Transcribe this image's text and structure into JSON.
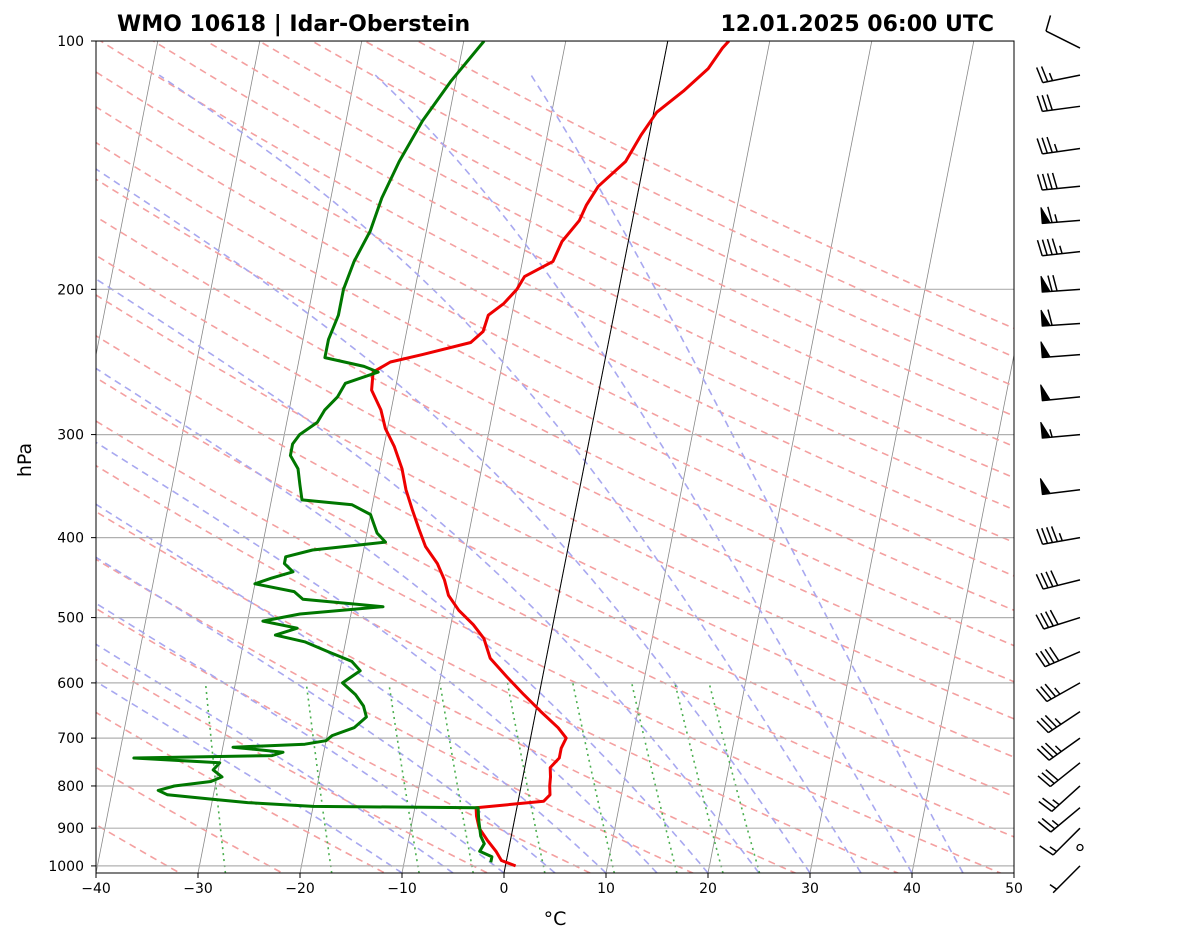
{
  "header": {
    "station": "WMO 10618 | Idar-Oberstein",
    "datetime": "12.01.2025 06:00 UTC"
  },
  "chart_data": {
    "type": "line",
    "diagram": "skew-t log-p",
    "xlabel": "°C",
    "ylabel": "hPa",
    "xlim": [
      -40,
      50
    ],
    "ylim": [
      1020,
      100
    ],
    "y_scale": "log",
    "grid": true,
    "x_ticks": [
      -40,
      -30,
      -20,
      -10,
      0,
      10,
      20,
      30,
      40,
      50
    ],
    "x_tick_labels": [
      "−40",
      "−30",
      "−20",
      "−10",
      "0",
      "10",
      "20",
      "30",
      "40",
      "50"
    ],
    "y_ticks": [
      100,
      200,
      300,
      400,
      500,
      600,
      700,
      800,
      900,
      1000
    ],
    "y_tick_labels": [
      "100",
      "200",
      "300",
      "400",
      "500",
      "600",
      "700",
      "800",
      "900",
      "1000"
    ],
    "colors": {
      "temperature": "#ee0000",
      "dewpoint": "#007700",
      "dry_adiabat": "#f4a0a0",
      "moist_adiabat": "#a8a8f0",
      "mixing_ratio": "#4caf50",
      "isotherm": "#888888",
      "reference": "#000000"
    },
    "series": [
      {
        "id": "temperature",
        "points": [
          [
            1000,
            1.0
          ],
          [
            985,
            -0.5
          ],
          [
            960,
            -1.2
          ],
          [
            930,
            -2.3
          ],
          [
            900,
            -3.3
          ],
          [
            870,
            -3.8
          ],
          [
            850,
            -4.0
          ],
          [
            835,
            2.5
          ],
          [
            820,
            3.0
          ],
          [
            800,
            2.8
          ],
          [
            780,
            2.7
          ],
          [
            760,
            2.5
          ],
          [
            740,
            3.2
          ],
          [
            720,
            3.2
          ],
          [
            700,
            3.5
          ],
          [
            680,
            2.5
          ],
          [
            650,
            0.5
          ],
          [
            620,
            -1.5
          ],
          [
            590,
            -3.5
          ],
          [
            560,
            -5.5
          ],
          [
            530,
            -6.5
          ],
          [
            510,
            -7.8
          ],
          [
            490,
            -9.5
          ],
          [
            470,
            -10.8
          ],
          [
            450,
            -11.5
          ],
          [
            430,
            -12.5
          ],
          [
            410,
            -14.0
          ],
          [
            390,
            -15.0
          ],
          [
            370,
            -16.0
          ],
          [
            350,
            -17.0
          ],
          [
            330,
            -17.8
          ],
          [
            310,
            -19.0
          ],
          [
            295,
            -20.2
          ],
          [
            280,
            -21.0
          ],
          [
            265,
            -22.3
          ],
          [
            252,
            -22.5
          ],
          [
            245,
            -21.0
          ],
          [
            240,
            -18.0
          ],
          [
            232,
            -13.5
          ],
          [
            225,
            -12.5
          ],
          [
            215,
            -12.3
          ],
          [
            208,
            -11.0
          ],
          [
            200,
            -10.0
          ],
          [
            193,
            -9.5
          ],
          [
            185,
            -7.0
          ],
          [
            175,
            -6.5
          ],
          [
            165,
            -5.2
          ],
          [
            158,
            -4.8
          ],
          [
            150,
            -4.0
          ],
          [
            140,
            -1.8
          ],
          [
            130,
            -0.8
          ],
          [
            122,
            0.3
          ],
          [
            115,
            2.5
          ],
          [
            108,
            4.5
          ],
          [
            102,
            5.5
          ],
          [
            100,
            6.0
          ]
        ]
      },
      {
        "id": "dewpoint",
        "points": [
          [
            990,
            -1.5
          ],
          [
            975,
            -1.5
          ],
          [
            960,
            -2.8
          ],
          [
            940,
            -2.5
          ],
          [
            920,
            -3.0
          ],
          [
            880,
            -3.5
          ],
          [
            850,
            -3.8
          ],
          [
            847,
            -20.0
          ],
          [
            838,
            -26.5
          ],
          [
            830,
            -30.0
          ],
          [
            820,
            -34.5
          ],
          [
            810,
            -35.5
          ],
          [
            800,
            -34.0
          ],
          [
            790,
            -30.5
          ],
          [
            780,
            -29.5
          ],
          [
            765,
            -30.5
          ],
          [
            750,
            -30.0
          ],
          [
            740,
            -38.5
          ],
          [
            735,
            -25.0
          ],
          [
            728,
            -24.0
          ],
          [
            718,
            -29.0
          ],
          [
            712,
            -22.0
          ],
          [
            705,
            -20.0
          ],
          [
            695,
            -19.5
          ],
          [
            680,
            -17.5
          ],
          [
            660,
            -16.5
          ],
          [
            640,
            -17.0
          ],
          [
            620,
            -18.0
          ],
          [
            600,
            -19.5
          ],
          [
            580,
            -18.0
          ],
          [
            565,
            -19.0
          ],
          [
            550,
            -21.5
          ],
          [
            535,
            -24.0
          ],
          [
            525,
            -27.0
          ],
          [
            515,
            -25.0
          ],
          [
            505,
            -28.5
          ],
          [
            495,
            -25.0
          ],
          [
            485,
            -17.0
          ],
          [
            475,
            -25.0
          ],
          [
            465,
            -26.0
          ],
          [
            455,
            -30.0
          ],
          [
            448,
            -28.5
          ],
          [
            440,
            -26.5
          ],
          [
            430,
            -27.5
          ],
          [
            422,
            -27.5
          ],
          [
            414,
            -25.0
          ],
          [
            405,
            -18.0
          ],
          [
            395,
            -19.0
          ],
          [
            385,
            -19.5
          ],
          [
            375,
            -20.0
          ],
          [
            365,
            -22.0
          ],
          [
            360,
            -27.0
          ],
          [
            345,
            -27.5
          ],
          [
            330,
            -28.0
          ],
          [
            318,
            -29.0
          ],
          [
            308,
            -29.0
          ],
          [
            300,
            -28.5
          ],
          [
            290,
            -27.0
          ],
          [
            280,
            -26.5
          ],
          [
            270,
            -25.5
          ],
          [
            260,
            -25.0
          ],
          [
            252,
            -22.0
          ],
          [
            248,
            -23.5
          ],
          [
            242,
            -27.5
          ],
          [
            230,
            -27.5
          ],
          [
            215,
            -27.0
          ],
          [
            200,
            -27.0
          ],
          [
            185,
            -26.5
          ],
          [
            170,
            -25.5
          ],
          [
            155,
            -25.0
          ],
          [
            140,
            -24.0
          ],
          [
            125,
            -22.5
          ],
          [
            112,
            -20.5
          ],
          [
            100,
            -18.0
          ]
        ]
      }
    ],
    "wind_barbs": [
      {
        "p": 1000,
        "u_kt": 5,
        "v_kt": 5
      },
      {
        "p": 950,
        "u_kt": 0,
        "v_kt": 0
      },
      {
        "p": 900,
        "u_kt": 10,
        "v_kt": 10
      },
      {
        "p": 850,
        "u_kt": 18,
        "v_kt": 15
      },
      {
        "p": 800,
        "u_kt": 20,
        "v_kt": 18
      },
      {
        "p": 750,
        "u_kt": 25,
        "v_kt": 20
      },
      {
        "p": 700,
        "u_kt": 28,
        "v_kt": 20
      },
      {
        "p": 650,
        "u_kt": 30,
        "v_kt": 20
      },
      {
        "p": 600,
        "u_kt": 32,
        "v_kt": 18
      },
      {
        "p": 550,
        "u_kt": 35,
        "v_kt": 15
      },
      {
        "p": 500,
        "u_kt": 38,
        "v_kt": 12
      },
      {
        "p": 450,
        "u_kt": 40,
        "v_kt": 10
      },
      {
        "p": 400,
        "u_kt": 45,
        "v_kt": 8
      },
      {
        "p": 350,
        "u_kt": 50,
        "v_kt": 6
      },
      {
        "p": 300,
        "u_kt": 55,
        "v_kt": 5
      },
      {
        "p": 270,
        "u_kt": 50,
        "v_kt": 5
      },
      {
        "p": 240,
        "u_kt": 52,
        "v_kt": 4
      },
      {
        "p": 220,
        "u_kt": 60,
        "v_kt": 4
      },
      {
        "p": 200,
        "u_kt": 70,
        "v_kt": 5
      },
      {
        "p": 180,
        "u_kt": 45,
        "v_kt": 5
      },
      {
        "p": 165,
        "u_kt": 65,
        "v_kt": 5
      },
      {
        "p": 150,
        "u_kt": 40,
        "v_kt": 4
      },
      {
        "p": 135,
        "u_kt": 35,
        "v_kt": 5
      },
      {
        "p": 120,
        "u_kt": 30,
        "v_kt": 4
      },
      {
        "p": 110,
        "u_kt": 25,
        "v_kt": 5
      },
      {
        "p": 102,
        "u_kt": 10,
        "v_kt": -5
      }
    ]
  }
}
